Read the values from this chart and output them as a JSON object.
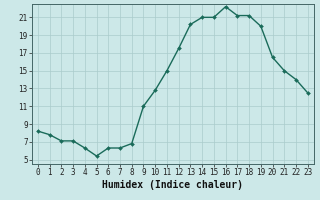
{
  "x": [
    0,
    1,
    2,
    3,
    4,
    5,
    6,
    7,
    8,
    9,
    10,
    11,
    12,
    13,
    14,
    15,
    16,
    17,
    18,
    19,
    20,
    21,
    22,
    23
  ],
  "y": [
    8.2,
    7.8,
    7.1,
    7.1,
    6.3,
    5.4,
    6.3,
    6.3,
    6.8,
    11.0,
    12.8,
    15.0,
    17.5,
    20.2,
    21.0,
    21.0,
    22.2,
    21.2,
    21.2,
    20.0,
    16.5,
    15.0,
    14.0,
    12.5
  ],
  "line_color": "#1a6b5a",
  "marker": "D",
  "markersize": 2.0,
  "linewidth": 1.0,
  "xlabel": "Humidex (Indice chaleur)",
  "xlabel_fontsize": 7,
  "xlabel_bold": true,
  "ylim": [
    4.5,
    22.5
  ],
  "xlim": [
    -0.5,
    23.5
  ],
  "yticks": [
    5,
    7,
    9,
    11,
    13,
    15,
    17,
    19,
    21
  ],
  "xticks": [
    0,
    1,
    2,
    3,
    4,
    5,
    6,
    7,
    8,
    9,
    10,
    11,
    12,
    13,
    14,
    15,
    16,
    17,
    18,
    19,
    20,
    21,
    22,
    23
  ],
  "bg_color": "#cce8e8",
  "grid_color": "#aacccc",
  "tick_fontsize": 5.5
}
